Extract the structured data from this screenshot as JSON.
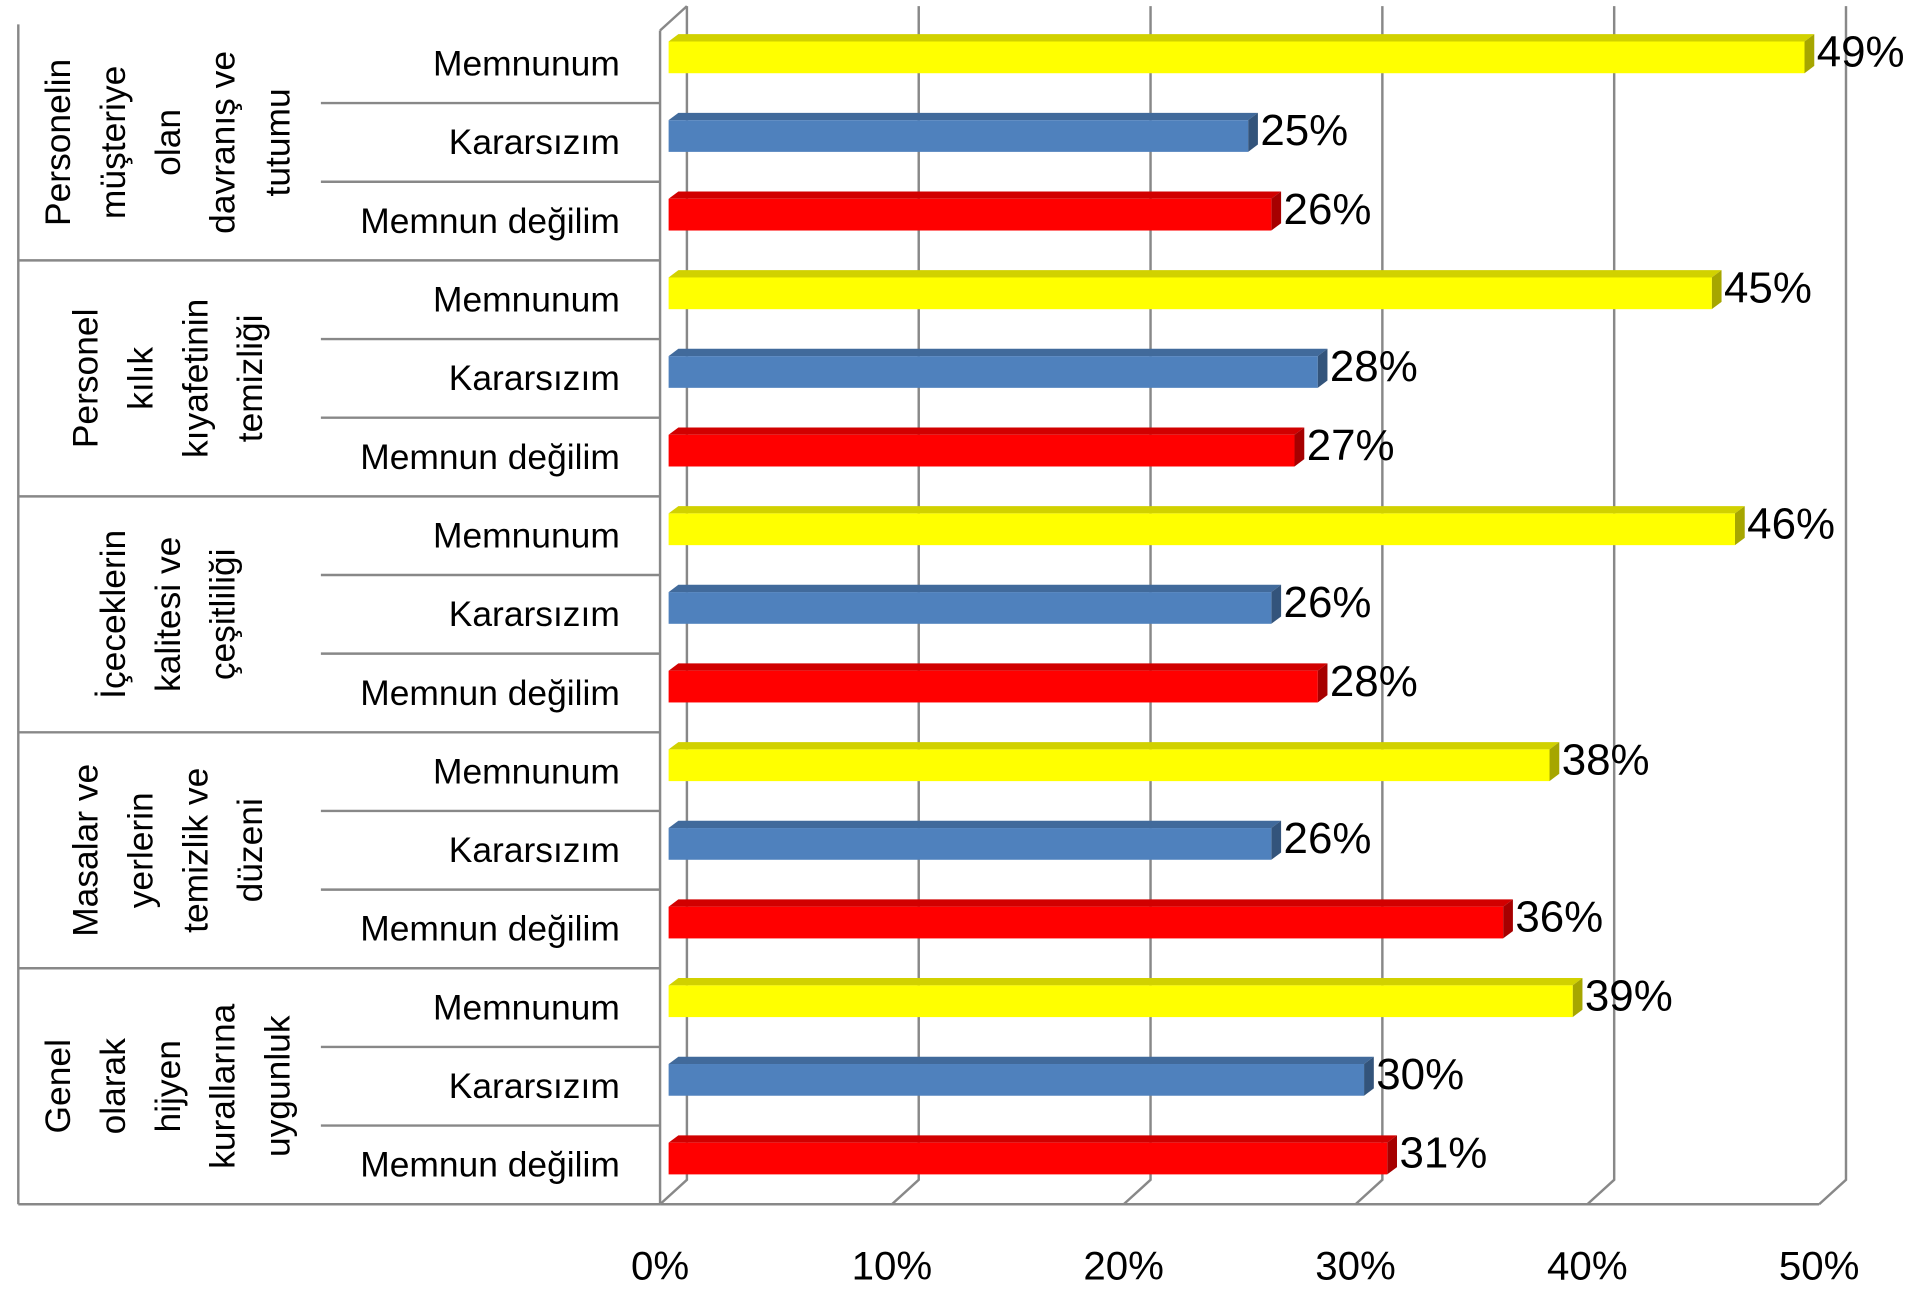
{
  "chart_data": {
    "type": "bar",
    "orientation": "horizontal",
    "categories": [
      "Personelin müşteriye olan davranış ve tutumu",
      "Personel kılık kıyafetinin temizliği",
      "İçeceklerin kalitesi ve çeşitliliği",
      "Masalar ve yerlerin temizlik ve düzeni",
      "Genel olarak hijyen kurallarına uygunluk"
    ],
    "series": [
      {
        "name": "Memnunum",
        "color": "#ffff00",
        "values": [
          49,
          45,
          46,
          38,
          39
        ],
        "value_labels": [
          "49%",
          "45%",
          "46%",
          "38%",
          "39%"
        ]
      },
      {
        "name": "Kararsızım",
        "color": "#4f81bd",
        "values": [
          25,
          28,
          26,
          26,
          30
        ],
        "value_labels": [
          "25%",
          "28%",
          "26%",
          "26%",
          "30%"
        ]
      },
      {
        "name": "Memnun değilim",
        "color": "#ff0000",
        "values": [
          26,
          27,
          28,
          36,
          31
        ],
        "value_labels": [
          "26%",
          "27%",
          "28%",
          "36%",
          "31%"
        ]
      }
    ],
    "xlim": [
      0,
      50
    ],
    "xticks": [
      {
        "value": 0,
        "label": "0%"
      },
      {
        "value": 10,
        "label": "10%"
      },
      {
        "value": 20,
        "label": "20%"
      },
      {
        "value": 30,
        "label": "30%"
      },
      {
        "value": 40,
        "label": "40%"
      },
      {
        "value": 50,
        "label": "50%"
      }
    ],
    "grid": true
  }
}
